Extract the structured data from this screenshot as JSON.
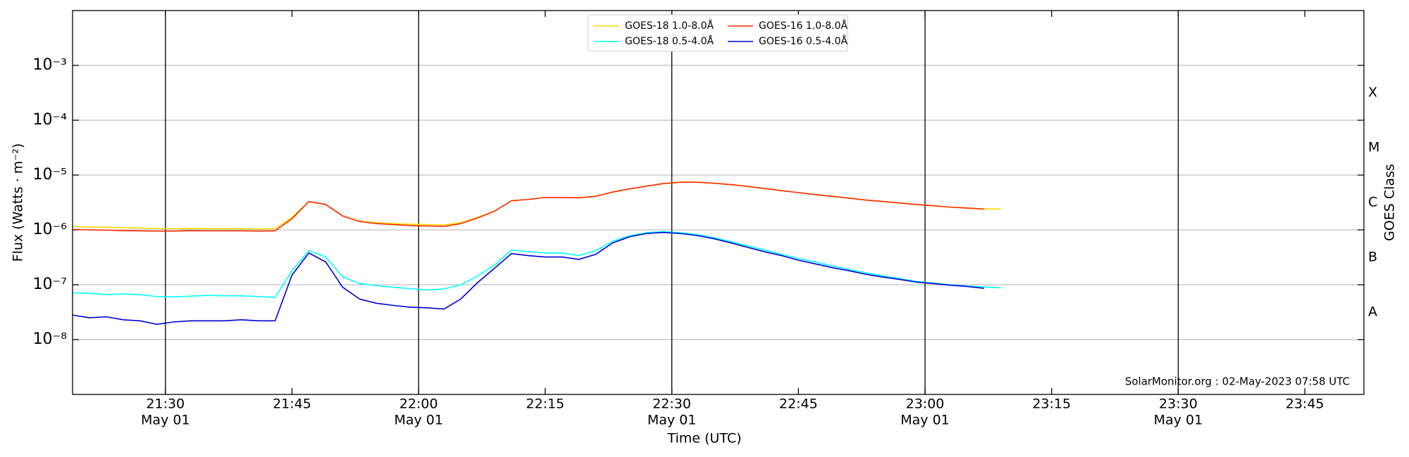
{
  "chart_data": {
    "type": "line",
    "xlabel": "Time (UTC)",
    "ylabel": "Flux (Watts · m⁻²)",
    "y2label": "GOES Class",
    "annotation": "SolarMonitor.org : 02-May-2023 07:58 UTC",
    "log_y": true,
    "grid": true,
    "legend": "upper center",
    "xlim": [
      "21:19",
      "23:52"
    ],
    "ylim": [
      1e-09,
      0.01
    ],
    "y2lim": [
      1e-09,
      0.01
    ],
    "xticks": [
      {
        "value": "21:30",
        "label": [
          "21:30",
          "May 01"
        ]
      },
      {
        "value": "21:45",
        "label": [
          "21:45"
        ]
      },
      {
        "value": "22:00",
        "label": [
          "22:00",
          "May 01"
        ]
      },
      {
        "value": "22:15",
        "label": [
          "22:15"
        ]
      },
      {
        "value": "22:30",
        "label": [
          "22:30",
          "May 01"
        ]
      },
      {
        "value": "22:45",
        "label": [
          "22:45"
        ]
      },
      {
        "value": "23:00",
        "label": [
          "23:00",
          "May 01"
        ]
      },
      {
        "value": "23:15",
        "label": [
          "23:15"
        ]
      },
      {
        "value": "23:30",
        "label": [
          "23:30",
          "May 01"
        ]
      },
      {
        "value": "23:45",
        "label": [
          "23:45"
        ]
      }
    ],
    "yticks": [
      {
        "value": 1e-08,
        "label": "10⁻⁸"
      },
      {
        "value": 1e-07,
        "label": "10⁻⁷"
      },
      {
        "value": 1e-06,
        "label": "10⁻⁶"
      },
      {
        "value": 1e-05,
        "label": "10⁻⁵"
      },
      {
        "value": 0.0001,
        "label": "10⁻⁴"
      },
      {
        "value": 0.001,
        "label": "10⁻³"
      }
    ],
    "y2ticks": [
      {
        "value": 3.16e-08,
        "label": "A"
      },
      {
        "value": 3.16e-07,
        "label": "B"
      },
      {
        "value": 3.16e-06,
        "label": "C"
      },
      {
        "value": 3.16e-05,
        "label": "M"
      },
      {
        "value": 0.000316,
        "label": "X"
      }
    ],
    "x": [
      "21:19",
      "21:21",
      "21:23",
      "21:25",
      "21:27",
      "21:29",
      "21:31",
      "21:33",
      "21:35",
      "21:37",
      "21:39",
      "21:41",
      "21:43",
      "21:45",
      "21:47",
      "21:49",
      "21:51",
      "21:53",
      "21:55",
      "21:57",
      "21:59",
      "22:01",
      "22:03",
      "22:05",
      "22:07",
      "22:09",
      "22:11",
      "22:13",
      "22:15",
      "22:17",
      "22:19",
      "22:21",
      "22:23",
      "22:25",
      "22:27",
      "22:29",
      "22:31",
      "22:33",
      "22:35",
      "22:37",
      "22:39",
      "22:41",
      "22:43",
      "22:45",
      "22:47",
      "22:49",
      "22:51",
      "22:53",
      "22:55",
      "22:57",
      "22:59",
      "23:01",
      "23:03",
      "23:05",
      "23:07",
      "23:09"
    ],
    "series": [
      {
        "name": "GOES-18 1.0-8.0Å",
        "color": "#ffd700",
        "values": [
          1.15e-06,
          1.13e-06,
          1.12e-06,
          1.1e-06,
          1.08e-06,
          1.06e-06,
          1.05e-06,
          1.06e-06,
          1.05e-06,
          1.05e-06,
          1.05e-06,
          1.04e-06,
          1.05e-06,
          1.7e-06,
          3.3e-06,
          2.9e-06,
          1.8e-06,
          1.45e-06,
          1.35e-06,
          1.3e-06,
          1.27e-06,
          1.25e-06,
          1.23e-06,
          1.35e-06,
          1.7e-06,
          2.2e-06,
          3.4e-06,
          3.6e-06,
          3.9e-06,
          3.9e-06,
          3.85e-06,
          4.1e-06,
          4.9e-06,
          5.6e-06,
          6.3e-06,
          7e-06,
          7.4e-06,
          7.4e-06,
          7.1e-06,
          6.7e-06,
          6.2e-06,
          5.7e-06,
          5.2e-06,
          4.8e-06,
          4.4e-06,
          4.1e-06,
          3.8e-06,
          3.5e-06,
          3.3e-06,
          3.1e-06,
          2.9e-06,
          2.75e-06,
          2.6e-06,
          2.5e-06,
          2.4e-06,
          2.4e-06
        ]
      },
      {
        "name": "GOES-18 0.5-4.0Å",
        "color": "#00ffff",
        "values": [
          7.1e-08,
          7e-08,
          6.6e-08,
          6.8e-08,
          6.6e-08,
          6.1e-08,
          6e-08,
          6.2e-08,
          6.4e-08,
          6.3e-08,
          6.3e-08,
          6.1e-08,
          5.9e-08,
          1.8e-07,
          4.2e-07,
          3.2e-07,
          1.4e-07,
          1.05e-07,
          9.6e-08,
          9e-08,
          8.5e-08,
          8e-08,
          8.4e-08,
          1e-07,
          1.45e-07,
          2.3e-07,
          4.3e-07,
          4e-07,
          3.8e-07,
          3.8e-07,
          3.4e-07,
          4.2e-07,
          6.2e-07,
          7.8e-07,
          8.9e-07,
          9.3e-07,
          8.9e-07,
          8.2e-07,
          7.2e-07,
          6.1e-07,
          5.1e-07,
          4.3e-07,
          3.6e-07,
          3e-07,
          2.6e-07,
          2.2e-07,
          1.9e-07,
          1.65e-07,
          1.45e-07,
          1.3e-07,
          1.15e-07,
          1.07e-07,
          1e-07,
          9.5e-08,
          9.1e-08,
          8.8e-08
        ]
      },
      {
        "name": "GOES-16 1.0-8.0Å",
        "color": "#ff2a00",
        "values": [
          1.02e-06,
          1e-06,
          9.9e-07,
          9.7e-07,
          9.6e-07,
          9.5e-07,
          9.5e-07,
          9.7e-07,
          9.6e-07,
          9.6e-07,
          9.6e-07,
          9.5e-07,
          9.6e-07,
          1.6e-06,
          3.3e-06,
          2.9e-06,
          1.8e-06,
          1.42e-06,
          1.3e-06,
          1.25e-06,
          1.2e-06,
          1.18e-06,
          1.16e-06,
          1.3e-06,
          1.65e-06,
          2.2e-06,
          3.4e-06,
          3.6e-06,
          3.9e-06,
          3.9e-06,
          3.85e-06,
          4.1e-06,
          4.9e-06,
          5.6e-06,
          6.3e-06,
          7e-06,
          7.4e-06,
          7.4e-06,
          7.1e-06,
          6.7e-06,
          6.2e-06,
          5.7e-06,
          5.2e-06,
          4.8e-06,
          4.4e-06,
          4.1e-06,
          3.8e-06,
          3.5e-06,
          3.3e-06,
          3.1e-06,
          2.9e-06,
          2.75e-06,
          2.6e-06,
          2.5e-06,
          2.4e-06,
          null
        ]
      },
      {
        "name": "GOES-16 0.5-4.0Å",
        "color": "#0000d0",
        "values": [
          2.8e-08,
          2.5e-08,
          2.6e-08,
          2.3e-08,
          2.2e-08,
          1.9e-08,
          2.1e-08,
          2.2e-08,
          2.2e-08,
          2.2e-08,
          2.3e-08,
          2.2e-08,
          2.2e-08,
          1.5e-07,
          3.8e-07,
          2.6e-07,
          9e-08,
          5.5e-08,
          4.6e-08,
          4.2e-08,
          3.9e-08,
          3.8e-08,
          3.6e-08,
          5.5e-08,
          1.1e-07,
          2e-07,
          3.7e-07,
          3.4e-07,
          3.2e-07,
          3.2e-07,
          2.9e-07,
          3.6e-07,
          5.8e-07,
          7.5e-07,
          8.6e-07,
          9e-07,
          8.6e-07,
          7.9e-07,
          6.9e-07,
          5.8e-07,
          4.8e-07,
          4e-07,
          3.4e-07,
          2.8e-07,
          2.4e-07,
          2.05e-07,
          1.8e-07,
          1.55e-07,
          1.38e-07,
          1.25e-07,
          1.12e-07,
          1.05e-07,
          9.8e-08,
          9.3e-08,
          8.6e-08,
          null
        ]
      }
    ]
  }
}
